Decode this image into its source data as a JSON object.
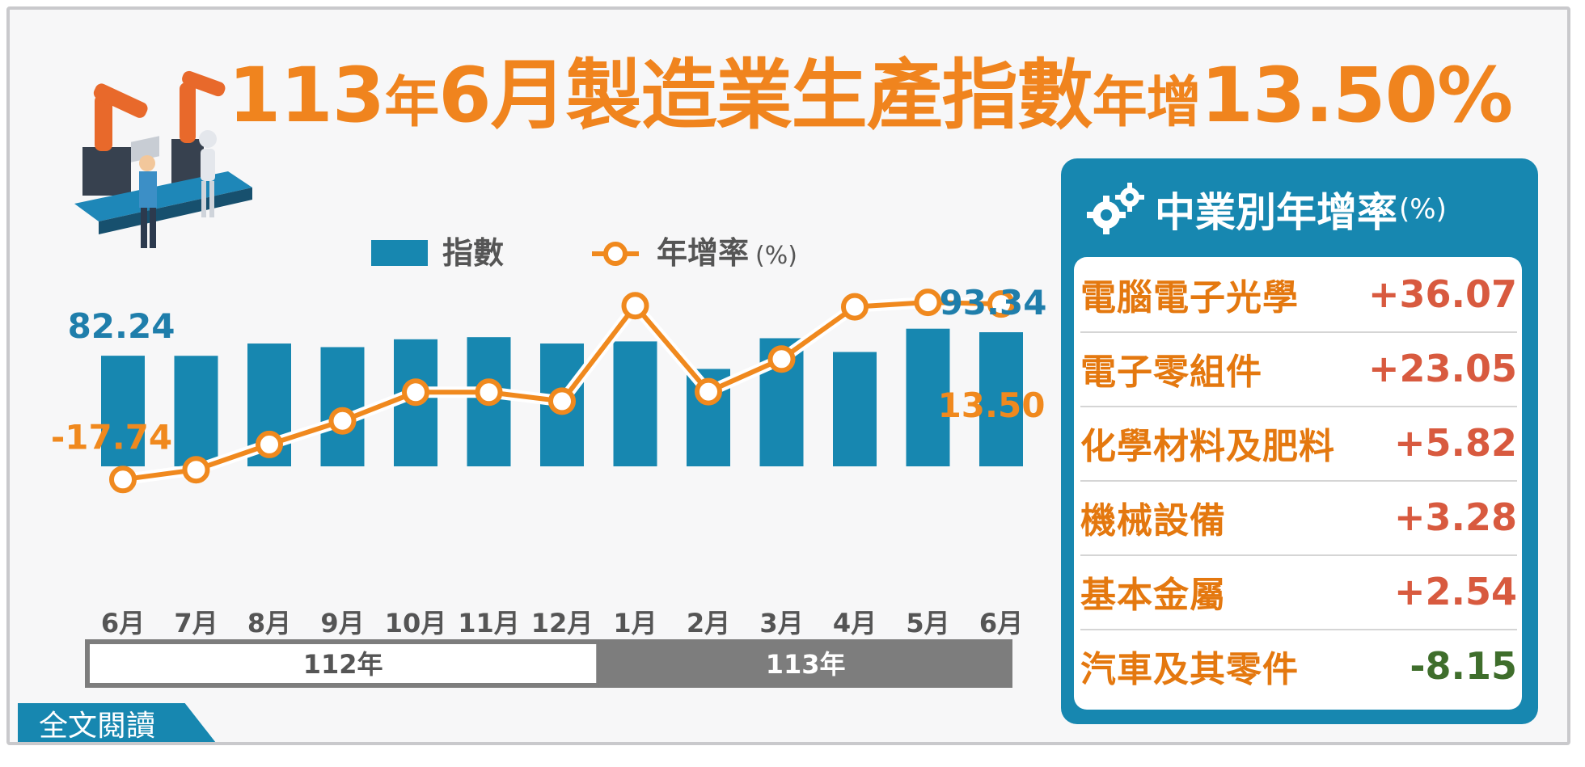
{
  "title": {
    "part1": "113",
    "part2": "年",
    "part3": "6月製造業生產指數",
    "part4": "年增",
    "part5": "13.50%"
  },
  "legend": {
    "index_label": "指數",
    "rate_label": "年增率",
    "rate_unit": "(%)"
  },
  "colors": {
    "bar": "#1787b0",
    "line": "#f0891e",
    "title": "#f0841e",
    "positive": "#d85a3f",
    "negative": "#3f6e2c",
    "label_blue": "#1f7eab",
    "label_orange": "#f0891e"
  },
  "chart_data": {
    "type": "bar+line",
    "categories": [
      "6月",
      "7月",
      "8月",
      "9月",
      "10月",
      "11月",
      "12月",
      "1月",
      "2月",
      "3月",
      "4月",
      "5月",
      "6月"
    ],
    "year_groups": [
      {
        "label": "112年",
        "from": 0,
        "to": 6
      },
      {
        "label": "113年",
        "from": 7,
        "to": 12
      }
    ],
    "series": [
      {
        "name": "指數",
        "type": "bar",
        "values": [
          82.24,
          82.2,
          88.0,
          86.3,
          90.0,
          91.0,
          88.0,
          89.0,
          76.0,
          90.5,
          84.0,
          95.0,
          93.34
        ]
      },
      {
        "name": "年增率",
        "type": "line",
        "unit": "(%)",
        "values": [
          -17.74,
          -16.0,
          -11.5,
          -7.3,
          -2.2,
          -2.2,
          -3.8,
          13.2,
          -2.1,
          3.7,
          13.0,
          13.8,
          13.5
        ]
      }
    ],
    "labels": {
      "first_index": "82.24",
      "last_index": "93.34",
      "first_rate": "-17.74",
      "last_rate": "13.50"
    }
  },
  "side_panel": {
    "title": "中業別年增率",
    "unit": "(%)",
    "items": [
      {
        "name": "電腦電子光學",
        "value": "+36.07",
        "sign": "positive"
      },
      {
        "name": "電子零組件",
        "value": "+23.05",
        "sign": "positive"
      },
      {
        "name": "化學材料及肥料",
        "value": "+5.82",
        "sign": "positive"
      },
      {
        "name": "機械設備",
        "value": "+3.28",
        "sign": "positive"
      },
      {
        "name": "基本金屬",
        "value": "+2.54",
        "sign": "positive"
      },
      {
        "name": "汽車及其零件",
        "value": "-8.15",
        "sign": "negative"
      }
    ]
  },
  "read_more": "全文閱讀"
}
